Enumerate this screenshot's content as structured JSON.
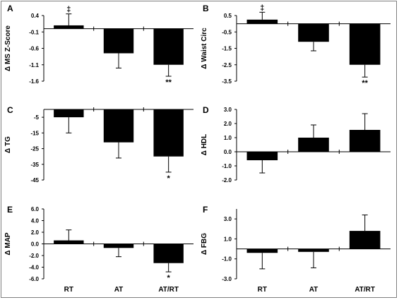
{
  "chart_data": [
    {
      "type": "bar",
      "panel_letter": "A",
      "ylabel": "Δ MS Z-Score",
      "categories": [
        "RT",
        "AT",
        "AT/RT"
      ],
      "values": [
        0.1,
        -0.75,
        -1.1
      ],
      "error": [
        0.35,
        0.45,
        0.35
      ],
      "ylim": [
        -1.6,
        0.4
      ],
      "yticks": [
        0.4,
        -0.1,
        -0.6,
        -1.1,
        -1.6
      ],
      "ytick_labels": [
        "0.4",
        "-0.1",
        "-0.6",
        "-1.1",
        "-1.6"
      ],
      "annotations": [
        "‡",
        "",
        "**"
      ],
      "show_xlabels": false
    },
    {
      "type": "bar",
      "panel_letter": "B",
      "ylabel": "Δ Waist Circ",
      "categories": [
        "RT",
        "AT",
        "AT/RT"
      ],
      "values": [
        0.25,
        -1.1,
        -2.5
      ],
      "error": [
        0.45,
        0.55,
        0.75
      ],
      "ylim": [
        -3.5,
        0.5
      ],
      "yticks": [
        0.5,
        -0.5,
        -1.5,
        -2.5,
        -3.5
      ],
      "ytick_labels": [
        "0.5",
        "-0.5",
        "-1.5",
        "-2.5",
        "-3.5"
      ],
      "annotations": [
        "‡",
        "",
        "**"
      ],
      "show_xlabels": false
    },
    {
      "type": "bar",
      "panel_letter": "C",
      "ylabel": "Δ TG",
      "categories": [
        "RT",
        "AT",
        "AT/RT"
      ],
      "values": [
        -5,
        -21,
        -30
      ],
      "error": [
        10,
        10,
        10
      ],
      "ylim": [
        -45,
        0
      ],
      "yticks": [
        -5,
        -15,
        -25,
        -35,
        -45
      ],
      "ytick_labels": [
        "-5",
        "-15",
        "-25",
        "-35",
        "-45"
      ],
      "annotations": [
        "",
        "",
        "*"
      ],
      "show_xlabels": false
    },
    {
      "type": "bar",
      "panel_letter": "D",
      "ylabel": "Δ HDL",
      "categories": [
        "RT",
        "AT",
        "AT/RT"
      ],
      "values": [
        -0.6,
        1.0,
        1.55
      ],
      "error": [
        0.9,
        0.9,
        1.15
      ],
      "ylim": [
        -2.0,
        3.0
      ],
      "yticks": [
        3.0,
        2.0,
        1.0,
        0.0,
        -1.0,
        -2.0
      ],
      "ytick_labels": [
        "3.0",
        "2.0",
        "1.0",
        "0.0",
        "-1.0",
        "-2.0"
      ],
      "annotations": [
        "",
        "",
        ""
      ],
      "show_xlabels": false
    },
    {
      "type": "bar",
      "panel_letter": "E",
      "ylabel": "Δ MAP",
      "categories": [
        "RT",
        "AT",
        "AT/RT"
      ],
      "values": [
        0.6,
        -0.7,
        -3.3
      ],
      "error": [
        1.8,
        1.5,
        1.5
      ],
      "ylim": [
        -6.0,
        6.0
      ],
      "yticks": [
        6.0,
        4.0,
        2.0,
        0.0,
        -2.0,
        -4.0,
        -6.0
      ],
      "ytick_labels": [
        "6.0",
        "4.0",
        "2.0",
        "0.0",
        "-2.0",
        "-4.0",
        "-6.0"
      ],
      "annotations": [
        "",
        "",
        "*"
      ],
      "show_xlabels": true
    },
    {
      "type": "bar",
      "panel_letter": "F",
      "ylabel": "Δ FBG",
      "categories": [
        "RT",
        "AT",
        "AT/RT"
      ],
      "values": [
        -0.4,
        -0.3,
        1.8
      ],
      "error": [
        1.6,
        1.6,
        1.6
      ],
      "ylim": [
        -3.0,
        4.0
      ],
      "yticks": [
        3.0,
        1.0,
        -1.0,
        -3.0
      ],
      "ytick_labels": [
        "3.0",
        "1.0",
        "-1.0",
        "-3.0"
      ],
      "annotations": [
        "",
        "",
        ""
      ],
      "show_xlabels": true
    }
  ],
  "colors": {
    "bar_fill": "#000000",
    "axis": "#000000",
    "frame": "#7f7f7f",
    "text": "#000000"
  }
}
